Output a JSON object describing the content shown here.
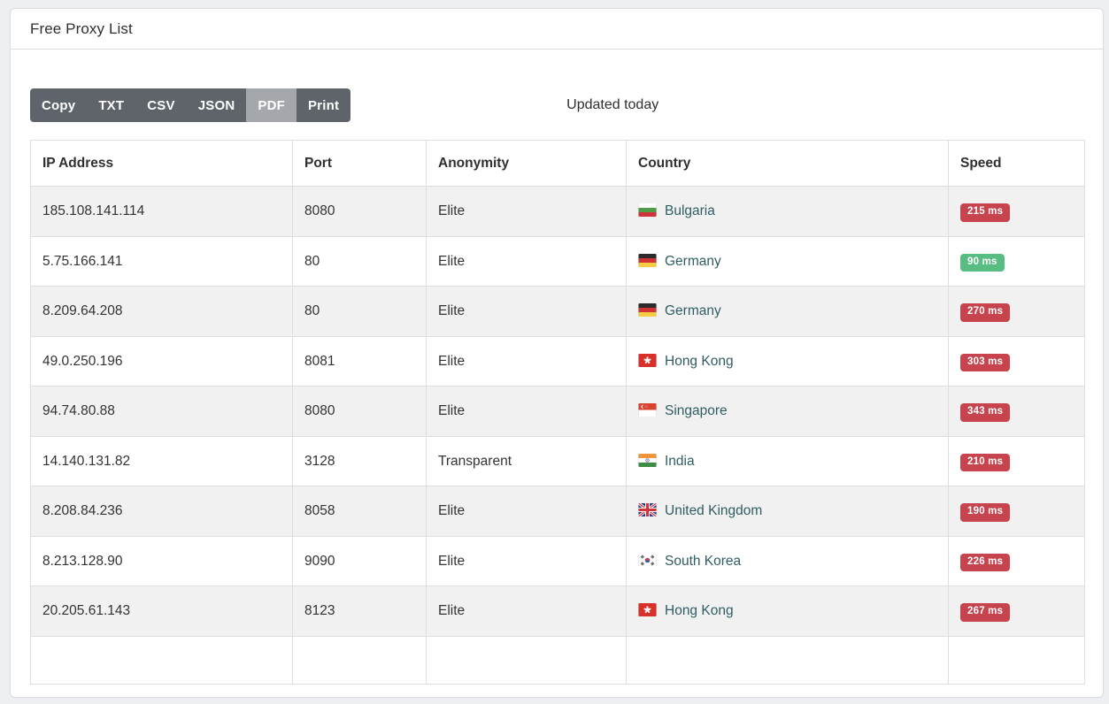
{
  "page": {
    "title": "Free Proxy List",
    "updated_label": "Updated today"
  },
  "toolbar": {
    "buttons": [
      {
        "id": "copy",
        "label": "Copy",
        "active": false
      },
      {
        "id": "txt",
        "label": "TXT",
        "active": false
      },
      {
        "id": "csv",
        "label": "CSV",
        "active": false
      },
      {
        "id": "json",
        "label": "JSON",
        "active": false
      },
      {
        "id": "pdf",
        "label": "PDF",
        "active": true
      },
      {
        "id": "print",
        "label": "Print",
        "active": false
      }
    ]
  },
  "table": {
    "columns": [
      "IP Address",
      "Port",
      "Anonymity",
      "Country",
      "Speed"
    ],
    "rows": [
      {
        "ip": "185.108.141.114",
        "port": "8080",
        "anonymity": "Elite",
        "country": "Bulgaria",
        "flag_icon": "flag-bulgaria",
        "speed": "215 ms",
        "speed_status": "slow"
      },
      {
        "ip": "5.75.166.141",
        "port": "80",
        "anonymity": "Elite",
        "country": "Germany",
        "flag_icon": "flag-germany",
        "speed": "90 ms",
        "speed_status": "fast"
      },
      {
        "ip": "8.209.64.208",
        "port": "80",
        "anonymity": "Elite",
        "country": "Germany",
        "flag_icon": "flag-germany",
        "speed": "270 ms",
        "speed_status": "slow"
      },
      {
        "ip": "49.0.250.196",
        "port": "8081",
        "anonymity": "Elite",
        "country": "Hong Kong",
        "flag_icon": "flag-hong-kong",
        "speed": "303 ms",
        "speed_status": "slow"
      },
      {
        "ip": "94.74.80.88",
        "port": "8080",
        "anonymity": "Elite",
        "country": "Singapore",
        "flag_icon": "flag-singapore",
        "speed": "343 ms",
        "speed_status": "slow"
      },
      {
        "ip": "14.140.131.82",
        "port": "3128",
        "anonymity": "Transparent",
        "country": "India",
        "flag_icon": "flag-india",
        "speed": "210 ms",
        "speed_status": "slow"
      },
      {
        "ip": "8.208.84.236",
        "port": "8058",
        "anonymity": "Elite",
        "country": "United Kingdom",
        "flag_icon": "flag-united-kingdom",
        "speed": "190 ms",
        "speed_status": "slow"
      },
      {
        "ip": "8.213.128.90",
        "port": "9090",
        "anonymity": "Elite",
        "country": "South Korea",
        "flag_icon": "flag-south-korea",
        "speed": "226 ms",
        "speed_status": "slow"
      },
      {
        "ip": "20.205.61.143",
        "port": "8123",
        "anonymity": "Elite",
        "country": "Hong Kong",
        "flag_icon": "flag-hong-kong",
        "speed": "267 ms",
        "speed_status": "slow"
      }
    ]
  },
  "colors": {
    "button": "#5e646a",
    "button_active": "#a4a8ac",
    "link": "#2f5d63",
    "badge_slow": "#c7434e",
    "badge_fast": "#58bd83",
    "row_stripe": "#f1f1f2",
    "border": "#dcdee0"
  }
}
